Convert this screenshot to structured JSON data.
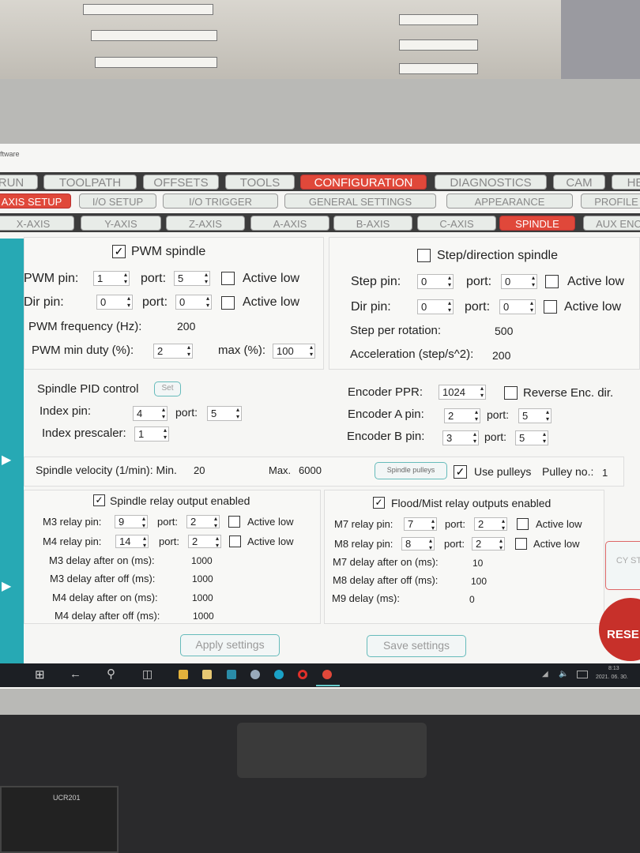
{
  "window": {
    "title": "ftware"
  },
  "main_tabs": [
    {
      "label": "RUN"
    },
    {
      "label": "TOOLPATH"
    },
    {
      "label": "OFFSETS"
    },
    {
      "label": "TOOLS"
    },
    {
      "label": "CONFIGURATION",
      "active": true
    },
    {
      "label": "DIAGNOSTICS"
    },
    {
      "label": "CAM"
    },
    {
      "label": "HE"
    }
  ],
  "sub_tabs": [
    {
      "label": "AXIS SETUP",
      "active": true
    },
    {
      "label": "I/O SETUP"
    },
    {
      "label": "I/O TRIGGER"
    },
    {
      "label": "GENERAL SETTINGS"
    },
    {
      "label": "APPEARANCE"
    },
    {
      "label": "PROFILE"
    }
  ],
  "axis_tabs": [
    {
      "label": "X-AXIS"
    },
    {
      "label": "Y-AXIS"
    },
    {
      "label": "Z-AXIS"
    },
    {
      "label": "A-AXIS"
    },
    {
      "label": "B-AXIS"
    },
    {
      "label": "C-AXIS"
    },
    {
      "label": "SPINDLE",
      "active": true
    },
    {
      "label": "AUX ENC"
    }
  ],
  "pwm": {
    "enable_label": "PWM spindle",
    "checked": true,
    "pwm_pin_label": "PWM pin:",
    "pwm_pin": "1",
    "port_label": "port:",
    "pwm_port": "5",
    "active_low": "Active low",
    "dir_pin_label": "Dir pin:",
    "dir_pin": "0",
    "dir_port": "0",
    "freq_label": "PWM frequency (Hz):",
    "freq": "200",
    "min_duty_label": "PWM min duty (%):",
    "min_duty": "2",
    "max_label": "max (%):",
    "max": "100"
  },
  "step": {
    "enable_label": "Step/direction spindle",
    "checked": false,
    "step_pin_label": "Step pin:",
    "step_pin": "0",
    "port_label": "port:",
    "step_port": "0",
    "active_low": "Active low",
    "dir_pin_label": "Dir pin:",
    "dir_pin": "0",
    "dir_port": "0",
    "spr_label": "Step per rotation:",
    "spr": "500",
    "accel_label": "Acceleration (step/s^2):",
    "accel": "200"
  },
  "pid": {
    "label": "Spindle PID control",
    "set_button": "Set",
    "index_pin_label": "Index pin:",
    "index_pin": "4",
    "port_label": "port:",
    "index_port": "5",
    "prescaler_label": "Index prescaler:",
    "prescaler": "1"
  },
  "encoder": {
    "ppr_label": "Encoder PPR:",
    "ppr": "1024",
    "reverse_label": "Reverse Enc. dir.",
    "a_label": "Encoder A pin:",
    "a_pin": "2",
    "port_label": "port:",
    "a_port": "5",
    "b_label": "Encoder B pin:",
    "b_pin": "3",
    "b_port": "5"
  },
  "velocity": {
    "label": "Spindle velocity (1/min): Min.",
    "min": "20",
    "max_label": "Max.",
    "max": "6000",
    "pulleys_button": "Spindle pulleys",
    "use_pulleys": "Use pulleys",
    "pulley_no_label": "Pulley no.:",
    "pulley_no": "1"
  },
  "relay": {
    "enable_label": "Spindle relay output enabled",
    "m3_label": "M3 relay pin:",
    "m3_pin": "9",
    "port_label": "port:",
    "m3_port": "2",
    "active_low": "Active low",
    "m4_label": "M4 relay pin:",
    "m4_pin": "14",
    "m4_port": "2",
    "m3_on_label": "M3 delay after on (ms):",
    "m3_on": "1000",
    "m3_off_label": "M3 delay after off (ms):",
    "m3_off": "1000",
    "m4_on_label": "M4 delay after on (ms):",
    "m4_on": "1000",
    "m4_off_label": "M4 delay after off (ms):",
    "m4_off": "1000"
  },
  "flood": {
    "enable_label": "Flood/Mist relay outputs enabled",
    "m7_label": "M7 relay pin:",
    "m7_pin": "7",
    "port_label": "port:",
    "m7_port": "2",
    "active_low": "Active low",
    "m8_label": "M8 relay pin:",
    "m8_pin": "8",
    "m8_port": "2",
    "m7_on_label": "M7 delay after on (ms):",
    "m7_on": "10",
    "m8_off_label": "M8 delay after off (ms):",
    "m8_off": "100",
    "m9_label": "M9 delay (ms):",
    "m9": "0"
  },
  "buttons": {
    "apply": "Apply settings",
    "save": "Save settings",
    "cycle": "CY ST",
    "reset": "RESE"
  },
  "taskbar": {
    "time": "8:13",
    "date": "2021. 06. 30."
  },
  "device": {
    "pendant_label": "UCR201"
  }
}
